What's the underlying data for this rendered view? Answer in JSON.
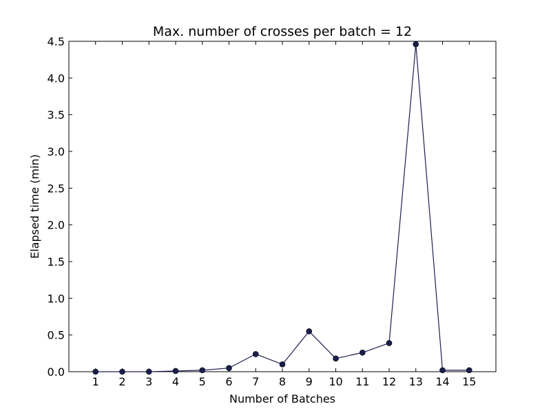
{
  "chart_data": {
    "type": "line",
    "title": "Max. number of crosses per batch = 12",
    "xlabel": "Number of Batches",
    "ylabel": "Elapsed time (min)",
    "x": [
      1,
      2,
      3,
      4,
      5,
      6,
      7,
      8,
      9,
      10,
      11,
      12,
      13,
      14,
      15
    ],
    "xlim": [
      0,
      16
    ],
    "ylim": [
      0,
      4.5
    ],
    "xticks": [
      1,
      2,
      3,
      4,
      5,
      6,
      7,
      8,
      9,
      10,
      11,
      12,
      13,
      14,
      15
    ],
    "xtick_labels": [
      "1",
      "2",
      "3",
      "4",
      "5",
      "6",
      "7",
      "8",
      "9",
      "10",
      "11",
      "12",
      "13",
      "14",
      "15"
    ],
    "yticks": [
      0,
      0.5,
      1.0,
      1.5,
      2.0,
      2.5,
      3.0,
      3.5,
      4.0,
      4.5
    ],
    "ytick_labels": [
      "0.0",
      "0.5",
      "1.0",
      "1.5",
      "2.0",
      "2.5",
      "3.0",
      "3.5",
      "4.0",
      "4.5"
    ],
    "grid": false,
    "series": [
      {
        "color": "#1a1f4d",
        "values": [
          0.0,
          0.0,
          0.0,
          0.01,
          0.02,
          0.05,
          0.24,
          0.1,
          0.55,
          0.18,
          0.26,
          0.39,
          4.46,
          0.02,
          0.02
        ]
      }
    ]
  }
}
